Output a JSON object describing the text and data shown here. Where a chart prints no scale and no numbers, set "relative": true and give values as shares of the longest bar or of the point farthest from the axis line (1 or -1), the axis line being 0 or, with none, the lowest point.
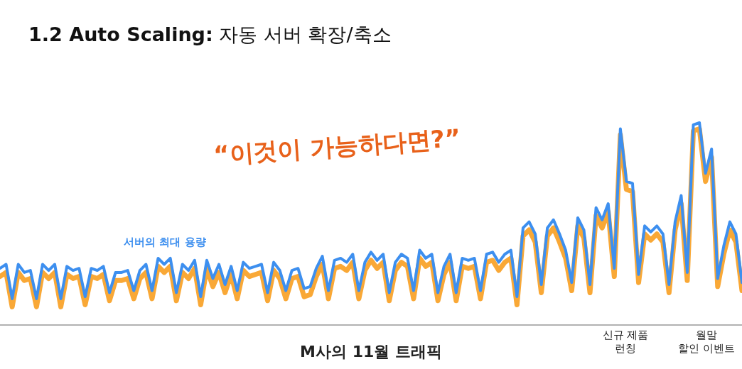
{
  "chart_data": {
    "type": "line",
    "title": "**1.2 Auto Scaling:** 자동 서버 확장/축소",
    "xlabel": "M사의 11월 트래픽",
    "relative": true,
    "marker": "none",
    "line_style": "solid",
    "annotations": [
      "“이것이 가능하다면?”",
      "신규 제품\n런칭",
      "월말\n할인 이벤트"
    ],
    "categories": [
      null,
      null,
      null,
      null,
      null,
      null,
      null,
      null,
      null,
      null,
      null,
      null,
      null,
      null,
      null,
      null,
      null,
      null,
      null,
      null,
      null,
      null,
      null,
      null,
      null,
      null,
      null,
      null,
      null,
      null,
      null,
      null,
      null,
      null,
      null,
      null,
      null,
      null,
      null,
      null,
      null,
      null,
      null,
      null,
      null,
      null,
      null,
      null,
      null,
      null,
      null,
      null,
      null,
      null,
      null,
      null,
      null,
      null,
      null,
      null,
      null,
      null,
      null,
      null,
      null,
      null,
      null,
      null,
      null,
      null,
      null,
      null,
      null,
      null,
      null,
      null,
      null,
      null,
      null,
      null,
      null,
      null,
      null,
      null,
      null,
      null,
      null,
      null,
      null,
      null,
      null,
      null,
      null,
      null,
      null,
      null,
      null,
      null,
      null,
      null,
      null,
      null,
      null,
      null,
      null,
      null,
      null,
      null,
      null,
      null,
      null,
      null,
      null,
      null,
      null,
      null,
      null,
      null,
      null,
      null,
      null,
      null,
      null
    ],
    "series": [
      {
        "color": "#f9a836",
        "values": [
          0.24,
          0.26,
          0.09,
          0.26,
          0.22,
          0.23,
          0.09,
          0.26,
          0.23,
          0.26,
          0.09,
          0.25,
          0.23,
          0.24,
          0.1,
          0.24,
          0.23,
          0.25,
          0.12,
          0.22,
          0.22,
          0.23,
          0.13,
          0.23,
          0.26,
          0.13,
          0.29,
          0.26,
          0.29,
          0.12,
          0.26,
          0.23,
          0.28,
          0.1,
          0.28,
          0.19,
          0.26,
          0.16,
          0.25,
          0.13,
          0.27,
          0.24,
          0.25,
          0.26,
          0.12,
          0.27,
          0.23,
          0.13,
          0.23,
          0.24,
          0.14,
          0.15,
          0.24,
          0.3,
          0.13,
          0.28,
          0.29,
          0.27,
          0.31,
          0.13,
          0.27,
          0.32,
          0.28,
          0.31,
          0.12,
          0.27,
          0.31,
          0.29,
          0.13,
          0.33,
          0.29,
          0.31,
          0.12,
          0.25,
          0.31,
          0.12,
          0.29,
          0.28,
          0.29,
          0.13,
          0.31,
          0.32,
          0.27,
          0.31,
          0.33,
          0.1,
          0.44,
          0.47,
          0.41,
          0.16,
          0.44,
          0.48,
          0.41,
          0.33,
          0.17,
          0.49,
          0.43,
          0.16,
          0.54,
          0.48,
          0.56,
          0.24,
          0.94,
          0.67,
          0.66,
          0.21,
          0.45,
          0.42,
          0.45,
          0.41,
          0.16,
          0.47,
          0.6,
          0.22,
          0.96,
          0.97,
          0.71,
          0.83,
          0.19,
          0.35,
          0.47,
          0.41,
          0.17
        ]
      },
      {
        "name": "서버의 최대 용량",
        "color": "#3d8fef",
        "values": [
          0.28,
          0.3,
          0.13,
          0.3,
          0.26,
          0.27,
          0.13,
          0.3,
          0.27,
          0.3,
          0.13,
          0.29,
          0.27,
          0.28,
          0.14,
          0.28,
          0.27,
          0.29,
          0.16,
          0.26,
          0.26,
          0.27,
          0.17,
          0.27,
          0.3,
          0.17,
          0.33,
          0.3,
          0.33,
          0.16,
          0.3,
          0.27,
          0.32,
          0.14,
          0.32,
          0.23,
          0.3,
          0.2,
          0.29,
          0.17,
          0.31,
          0.28,
          0.29,
          0.3,
          0.16,
          0.31,
          0.27,
          0.17,
          0.27,
          0.28,
          0.18,
          0.19,
          0.28,
          0.34,
          0.17,
          0.32,
          0.33,
          0.31,
          0.35,
          0.17,
          0.31,
          0.36,
          0.32,
          0.35,
          0.16,
          0.31,
          0.35,
          0.33,
          0.17,
          0.37,
          0.33,
          0.35,
          0.16,
          0.29,
          0.35,
          0.16,
          0.33,
          0.32,
          0.33,
          0.17,
          0.35,
          0.36,
          0.31,
          0.35,
          0.37,
          0.14,
          0.48,
          0.51,
          0.45,
          0.2,
          0.48,
          0.52,
          0.45,
          0.37,
          0.21,
          0.53,
          0.47,
          0.2,
          0.58,
          0.52,
          0.6,
          0.28,
          0.97,
          0.71,
          0.7,
          0.25,
          0.49,
          0.46,
          0.49,
          0.45,
          0.2,
          0.51,
          0.64,
          0.26,
          0.99,
          1.0,
          0.75,
          0.87,
          0.23,
          0.39,
          0.51,
          0.45,
          0.21
        ]
      }
    ]
  }
}
